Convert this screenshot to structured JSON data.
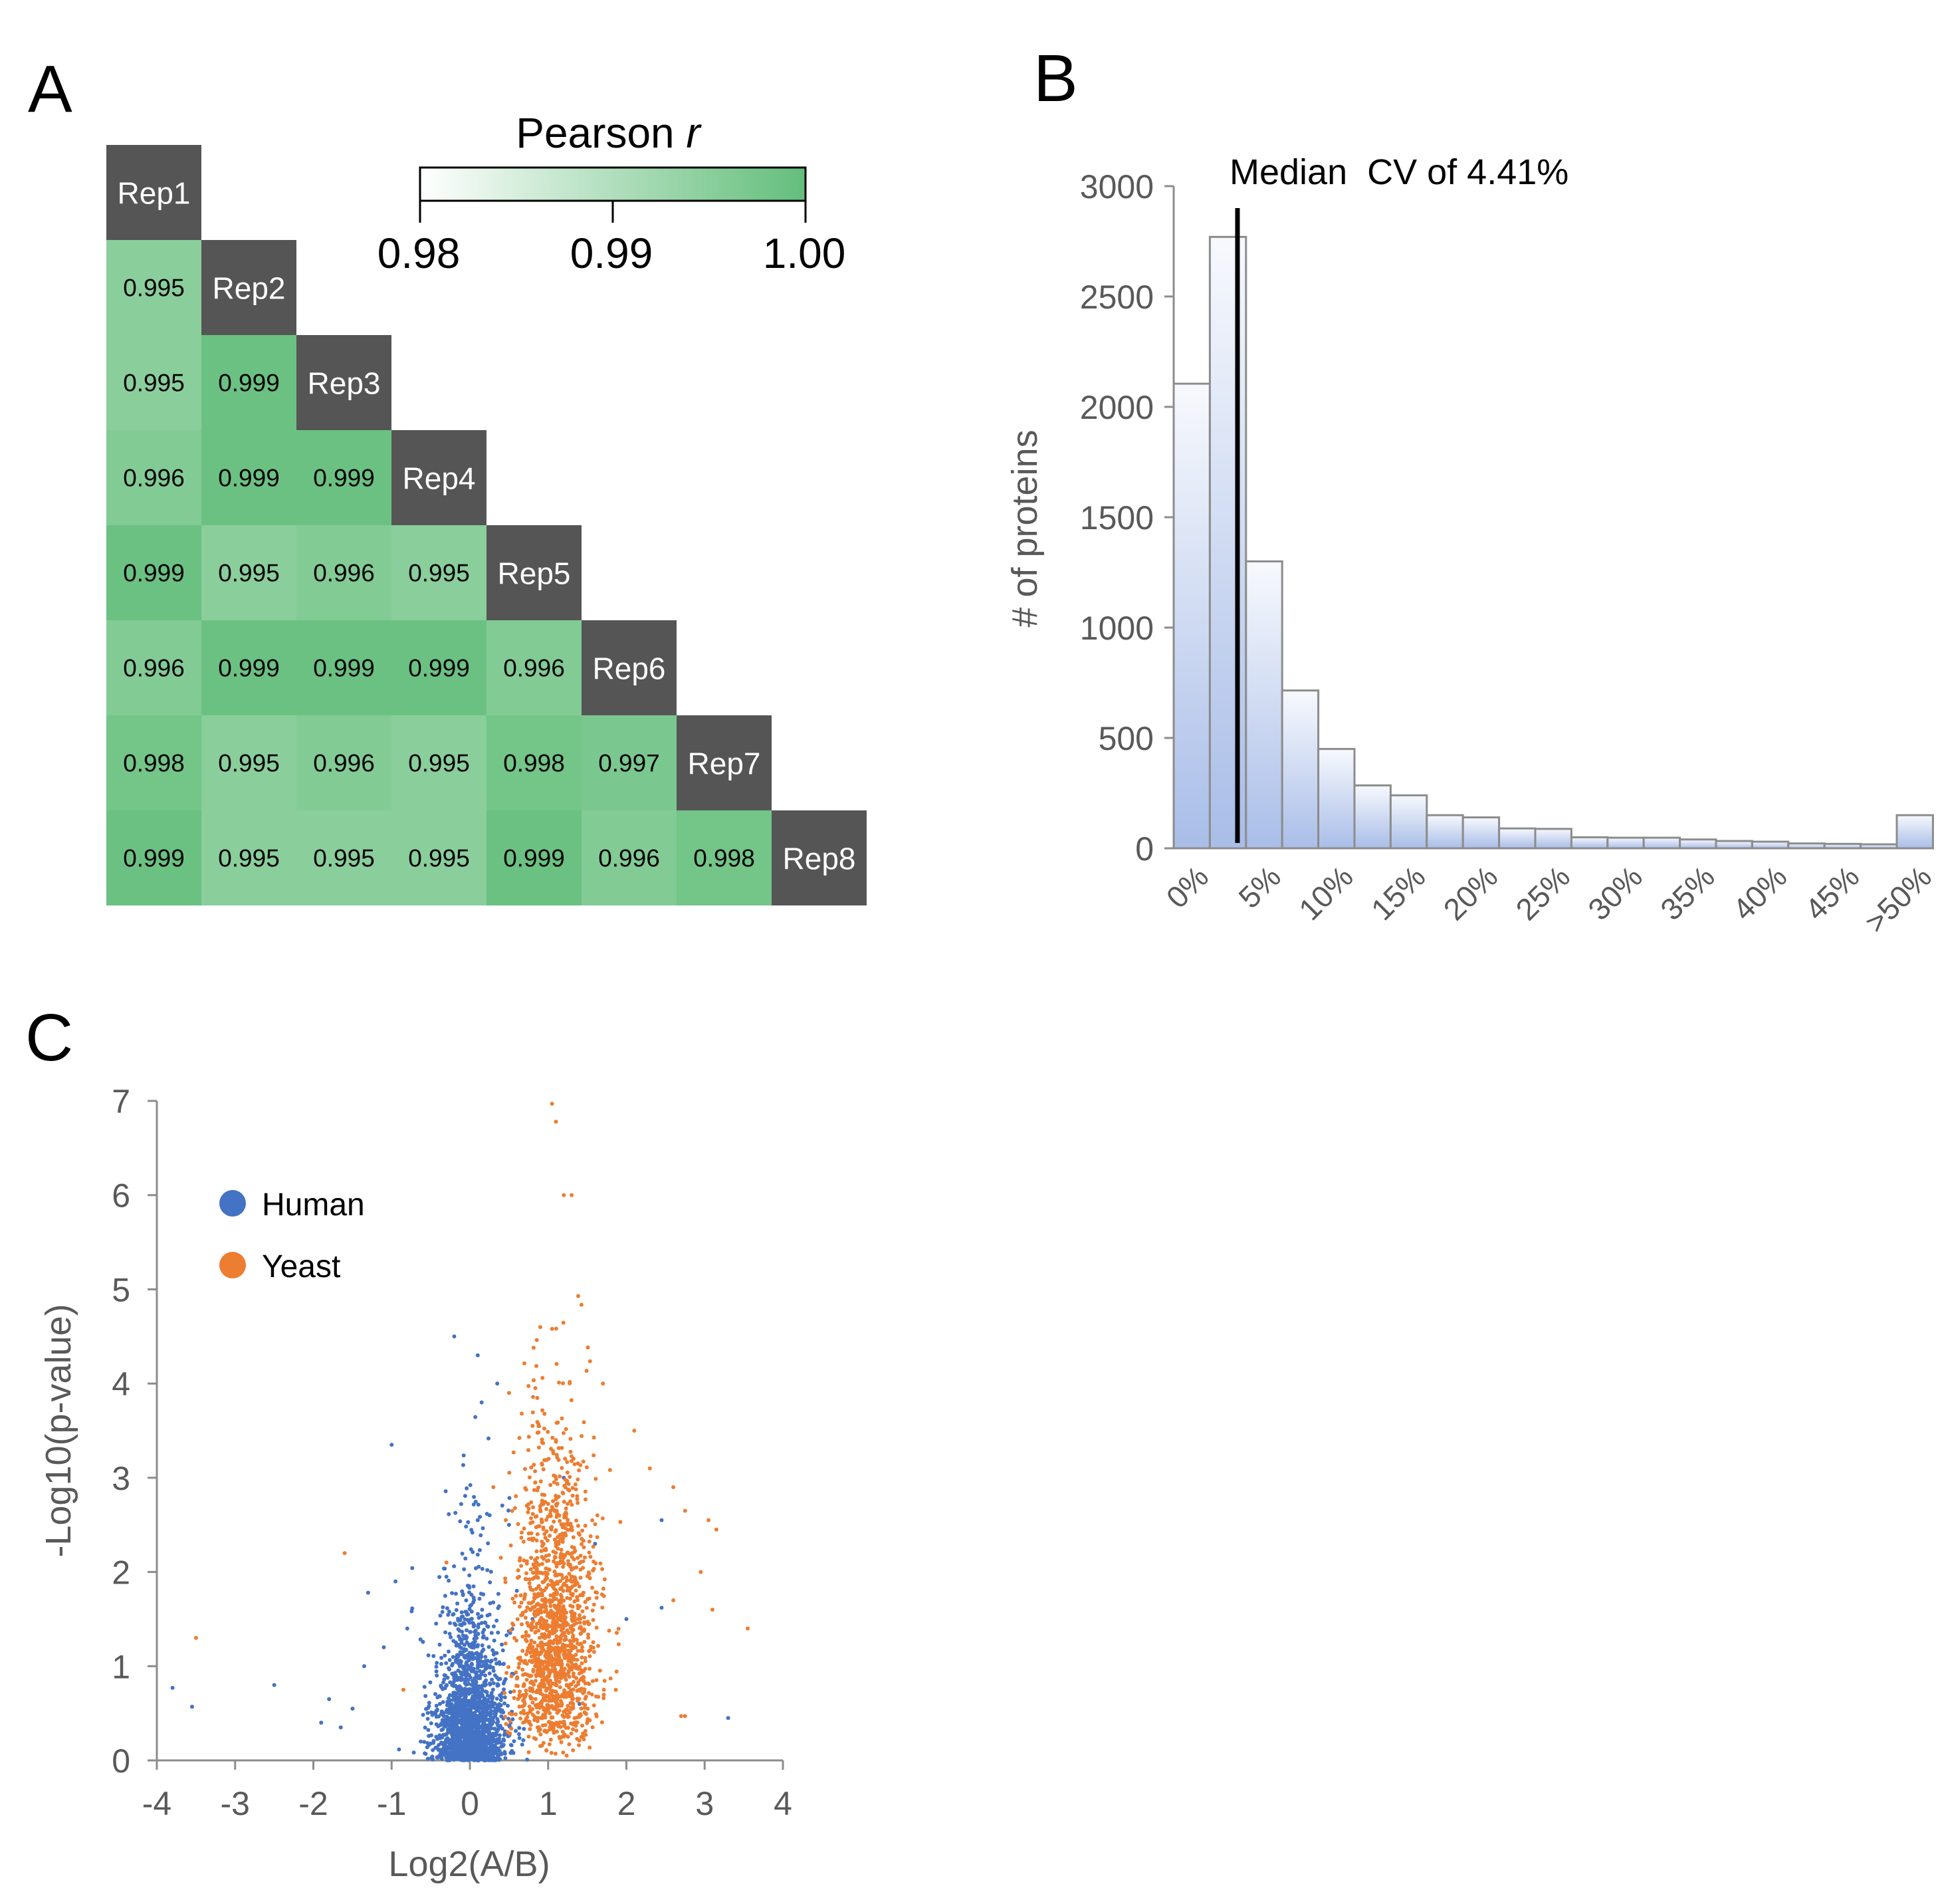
{
  "panel_labels": {
    "a": "A",
    "b": "B",
    "c": "C"
  },
  "colors": {
    "heat_low": "#ffffff",
    "heat_high": "#63be7b",
    "diag": "#555555",
    "bar_fill_top": "#f7f9fd",
    "bar_fill_bottom": "#a9bde8",
    "bar_stroke": "#8c8c8c",
    "human": "#4472c4",
    "yeast": "#ed7d31",
    "axis": "#8c8c8c",
    "tick_text": "#595959"
  },
  "chart_data": [
    {
      "id": "A",
      "type": "heatmap",
      "labels": [
        "Rep1",
        "Rep2",
        "Rep3",
        "Rep4",
        "Rep5",
        "Rep6",
        "Rep7",
        "Rep8"
      ],
      "values": [
        [],
        [
          "0.995"
        ],
        [
          "0.995",
          "0.999"
        ],
        [
          "0.996",
          "0.999",
          "0.999"
        ],
        [
          "0.999",
          "0.995",
          "0.996",
          "0.995"
        ],
        [
          "0.996",
          "0.999",
          "0.999",
          "0.999",
          "0.996"
        ],
        [
          "0.998",
          "0.995",
          "0.996",
          "0.995",
          "0.998",
          "0.997"
        ],
        [
          "0.999",
          "0.995",
          "0.995",
          "0.995",
          "0.999",
          "0.996",
          "0.998"
        ]
      ],
      "colorbar": {
        "title": "Pearson",
        "title_italic": "r",
        "range": [
          0.98,
          1.0
        ],
        "ticks": [
          "0.98",
          "0.99",
          "1.00"
        ]
      }
    },
    {
      "id": "B",
      "type": "bar",
      "title": "",
      "ylabel": "# of proteins",
      "xlabel": "",
      "ylim": [
        0,
        3000
      ],
      "yticks": [
        "0",
        "500",
        "1000",
        "1500",
        "2000",
        "2500",
        "3000"
      ],
      "xticks": [
        "0%",
        "5%",
        "10%",
        "15%",
        "20%",
        "25%",
        "30%",
        "35%",
        "40%",
        "45%",
        ">50%"
      ],
      "bin_width_percent": 2.5,
      "values": [
        2105,
        2770,
        1300,
        715,
        450,
        285,
        240,
        150,
        140,
        90,
        88,
        50,
        48,
        48,
        40,
        33,
        30,
        22,
        20,
        18,
        150
      ],
      "annotation": {
        "text": "Median  CV of 4.41%",
        "x_percent": 4.41
      }
    },
    {
      "id": "C",
      "type": "scatter",
      "xlabel": "Log2(A/B)",
      "ylabel": "-Log10(p-value)",
      "xlim": [
        -4,
        4
      ],
      "ylim": [
        0,
        7
      ],
      "xticks": [
        "-4",
        "-3",
        "-2",
        "-1",
        "0",
        "1",
        "2",
        "3",
        "4"
      ],
      "yticks": [
        "0",
        "1",
        "2",
        "3",
        "4",
        "5",
        "6",
        "7"
      ],
      "legend": [
        "Human",
        "Yeast"
      ],
      "series": [
        {
          "name": "Human",
          "points": [
            [
              -3.8,
              0.77
            ],
            [
              -3.55,
              0.57
            ],
            [
              -2.5,
              0.8
            ],
            [
              -1.65,
              0.35
            ],
            [
              -1.35,
              1.0
            ],
            [
              -1.3,
              1.78
            ],
            [
              -1.0,
              3.35
            ],
            [
              -0.95,
              1.9
            ],
            [
              -0.3,
              1.95
            ],
            [
              -0.2,
              4.5
            ],
            [
              -0.15,
              1.1
            ],
            [
              0.1,
              4.3
            ],
            [
              0.15,
              3.8
            ],
            [
              0.1,
              2.55
            ],
            [
              0.35,
              4.0
            ],
            [
              0.5,
              2.5
            ],
            [
              0.8,
              1.5
            ],
            [
              1.2,
              3.0
            ],
            [
              1.6,
              2.3
            ],
            [
              2.0,
              1.5
            ],
            [
              2.45,
              1.62
            ],
            [
              2.45,
              2.55
            ],
            [
              3.3,
              0.45
            ],
            [
              -1.8,
              0.65
            ],
            [
              -1.5,
              0.55
            ],
            [
              -1.9,
              0.4
            ],
            [
              -1.1,
              1.2
            ],
            [
              -0.8,
              1.4
            ],
            [
              0.6,
              1.8
            ],
            [
              1.4,
              0.6
            ]
          ],
          "cloud": {
            "count": 2000,
            "center_x": 0,
            "sd_x": 0.17,
            "y_scale": 0.5
          }
        },
        {
          "name": "Yeast",
          "points": [
            [
              -3.5,
              1.3
            ],
            [
              -1.6,
              2.2
            ],
            [
              -0.85,
              0.75
            ],
            [
              0.5,
              3.9
            ],
            [
              0.9,
              4.6
            ],
            [
              1.05,
              6.97
            ],
            [
              1.1,
              6.78
            ],
            [
              1.2,
              6.0
            ],
            [
              1.3,
              6.0
            ],
            [
              1.7,
              4.0
            ],
            [
              2.1,
              3.5
            ],
            [
              2.3,
              3.1
            ],
            [
              2.6,
              2.9
            ],
            [
              2.75,
              2.65
            ],
            [
              3.05,
              2.55
            ],
            [
              3.15,
              2.45
            ],
            [
              2.95,
              2.0
            ],
            [
              3.1,
              1.6
            ],
            [
              3.55,
              1.4
            ],
            [
              2.7,
              0.47
            ],
            [
              2.75,
              0.47
            ],
            [
              2.6,
              1.7
            ],
            [
              -0.3,
              2.1
            ],
            [
              0.3,
              2.9
            ]
          ],
          "cloud": {
            "count": 1500,
            "center_x": 1.08,
            "sd_x": 0.2,
            "y_scale": 1.55
          }
        }
      ]
    }
  ]
}
